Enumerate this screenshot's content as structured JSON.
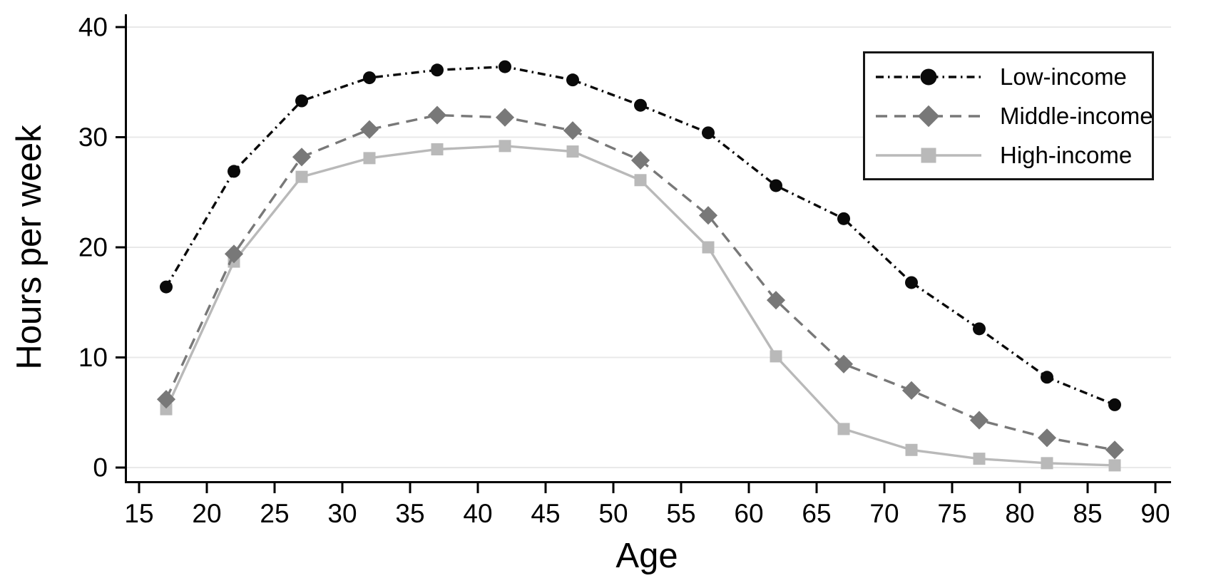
{
  "chart_data": {
    "type": "line",
    "title": "",
    "xlabel": "Age",
    "ylabel": "Hours per week",
    "x": [
      17,
      22,
      27,
      32,
      37,
      42,
      47,
      52,
      57,
      62,
      67,
      72,
      77,
      82,
      87
    ],
    "series": [
      {
        "name": "Low-income",
        "color": "#0a0a0a",
        "line_style": "dash-dot",
        "marker": "circle",
        "values": [
          16.4,
          26.9,
          33.3,
          35.4,
          36.1,
          36.4,
          35.2,
          32.9,
          30.4,
          25.6,
          22.6,
          16.8,
          12.6,
          8.2,
          5.7
        ]
      },
      {
        "name": "Middle-income",
        "color": "#787878",
        "line_style": "dashed",
        "marker": "diamond",
        "values": [
          6.2,
          19.4,
          28.2,
          30.7,
          32.0,
          31.8,
          30.6,
          27.9,
          22.9,
          15.2,
          9.4,
          7.0,
          4.3,
          2.7,
          1.6
        ]
      },
      {
        "name": "High-income",
        "color": "#b9b9b9",
        "line_style": "solid",
        "marker": "square",
        "values": [
          5.3,
          18.7,
          26.4,
          28.1,
          28.9,
          29.2,
          28.7,
          26.1,
          20.0,
          10.1,
          3.5,
          1.6,
          0.8,
          0.4,
          0.2
        ]
      }
    ],
    "x_ticks": [
      15,
      20,
      25,
      30,
      35,
      40,
      45,
      50,
      55,
      60,
      65,
      70,
      75,
      80,
      85,
      90
    ],
    "y_ticks": [
      0,
      10,
      20,
      30,
      40
    ],
    "xlim": [
      14,
      91.2
    ],
    "ylim": [
      0,
      40
    ],
    "grid": "horizontal-gridlines-on",
    "gridline_color": "#e9e9e9",
    "axis_color": "#000000",
    "legend_position": "top-right-inside"
  }
}
